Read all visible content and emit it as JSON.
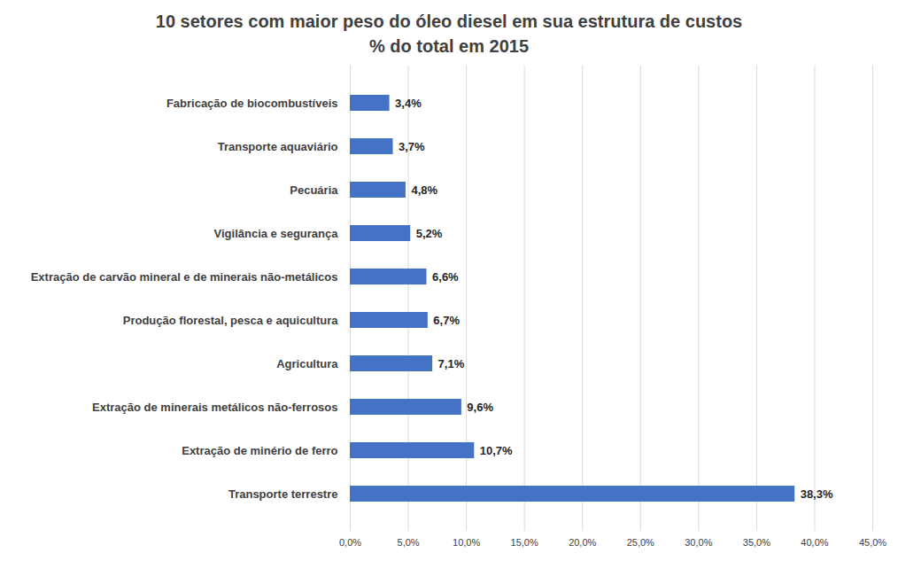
{
  "chart_data": {
    "type": "bar",
    "orientation": "horizontal",
    "title": "10 setores com maior peso do óleo diesel em sua estrutura de custos",
    "subtitle": "% do total em 2015",
    "categories": [
      "Fabricação de biocombustíveis",
      "Transporte aquaviário",
      "Pecuária",
      "Vigilância e segurança",
      "Extração de carvão mineral e de minerais não-metálicos",
      "Produção florestal, pesca e aquicultura",
      "Agricultura",
      "Extração de minerais metálicos não-ferrosos",
      "Extração de minério de ferro",
      "Transporte terrestre"
    ],
    "values": [
      3.4,
      3.7,
      4.8,
      5.2,
      6.6,
      6.7,
      7.1,
      9.6,
      10.7,
      38.3
    ],
    "value_labels": [
      "3,4%",
      "3,7%",
      "4,8%",
      "5,2%",
      "6,6%",
      "6,7%",
      "7,1%",
      "9,6%",
      "10,7%",
      "38,3%"
    ],
    "color": "#4472c4",
    "xlim": [
      0,
      45
    ],
    "xticks": [
      {
        "value": 0,
        "label": "0,0%"
      },
      {
        "value": 5,
        "label": "5,0%"
      },
      {
        "value": 10,
        "label": "10,0%"
      },
      {
        "value": 15,
        "label": "15,0%"
      },
      {
        "value": 20,
        "label": "20,0%"
      },
      {
        "value": 25,
        "label": "25,0%"
      },
      {
        "value": 30,
        "label": "30,0%"
      },
      {
        "value": 35,
        "label": "35,0%"
      },
      {
        "value": 40,
        "label": "40,0%"
      },
      {
        "value": 45,
        "label": "45,0%"
      }
    ],
    "grid": true,
    "data_labels": true
  }
}
